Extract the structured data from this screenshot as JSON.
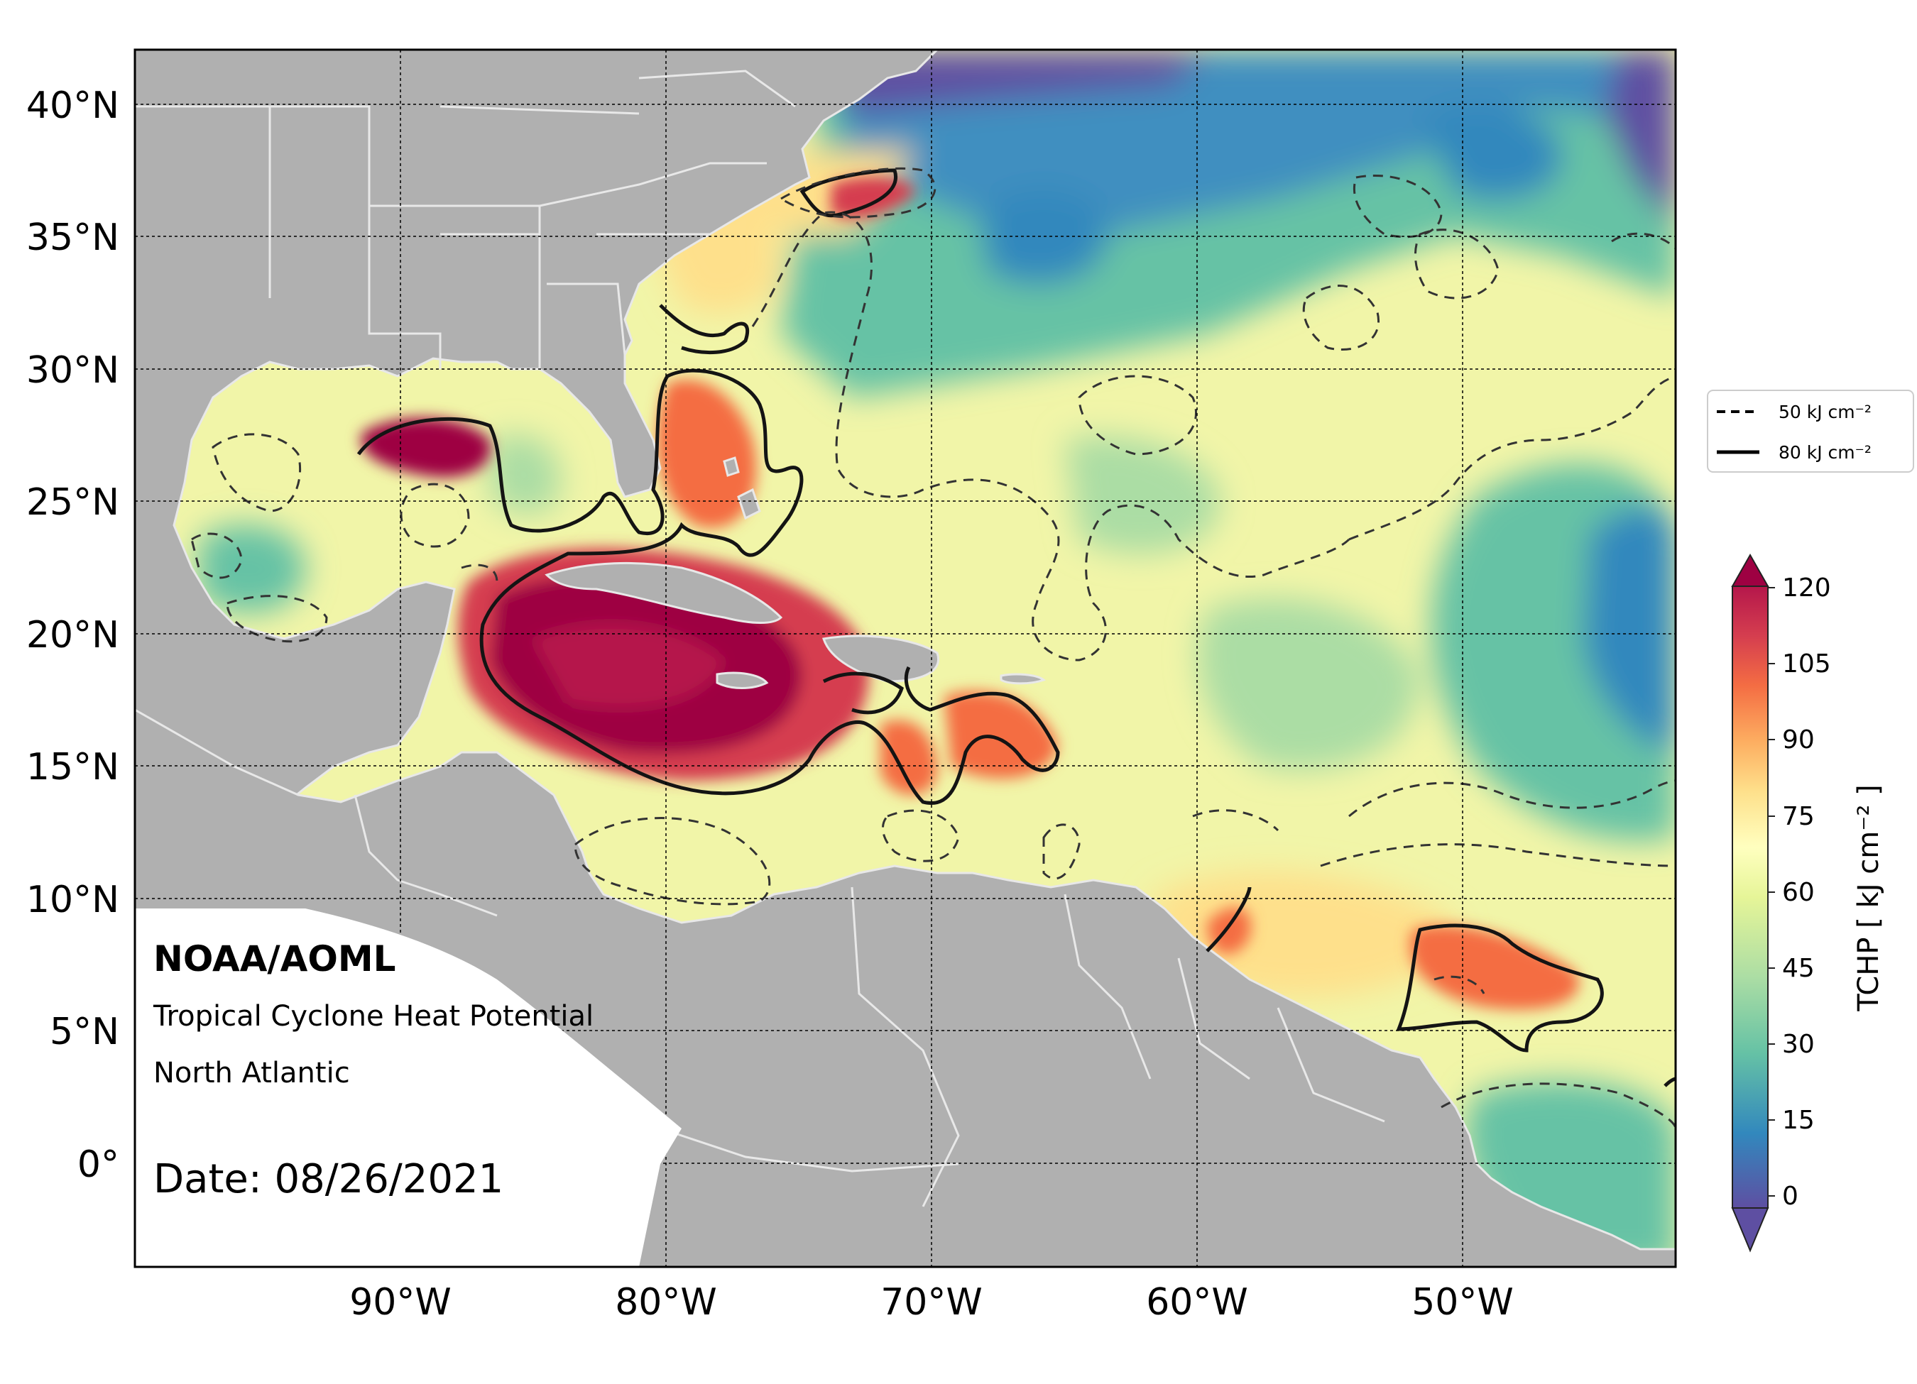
{
  "map": {
    "lat_ticks": [
      "40°N",
      "35°N",
      "30°N",
      "25°N",
      "20°N",
      "15°N",
      "10°N",
      "5°N",
      "0°"
    ],
    "lon_ticks": [
      "90°W",
      "80°W",
      "70°W",
      "60°W",
      "50°W"
    ],
    "extent": {
      "lon": [
        -100,
        -42
      ],
      "lat": [
        -4,
        42
      ]
    }
  },
  "legend": {
    "items": [
      {
        "label": "50 kJ cm⁻²",
        "style": "dashed"
      },
      {
        "label": "80 kJ cm⁻²",
        "style": "solid"
      }
    ]
  },
  "colorbar": {
    "label": "TCHP [ kJ cm⁻² ]",
    "ticks": [
      "120",
      "105",
      "90",
      "75",
      "60",
      "45",
      "30",
      "15",
      "0"
    ],
    "colors": [
      "#5e4fa2",
      "#3288bd",
      "#66c2a5",
      "#abdda4",
      "#e6f598",
      "#ffffbf",
      "#fee08b",
      "#fdae61",
      "#f46d43",
      "#d53e4f",
      "#9e0142"
    ]
  },
  "info": {
    "org": "NOAA/AOML",
    "product": "Tropical Cyclone Heat Potential",
    "region": "North Atlantic",
    "date": "Date: 08/26/2021"
  }
}
